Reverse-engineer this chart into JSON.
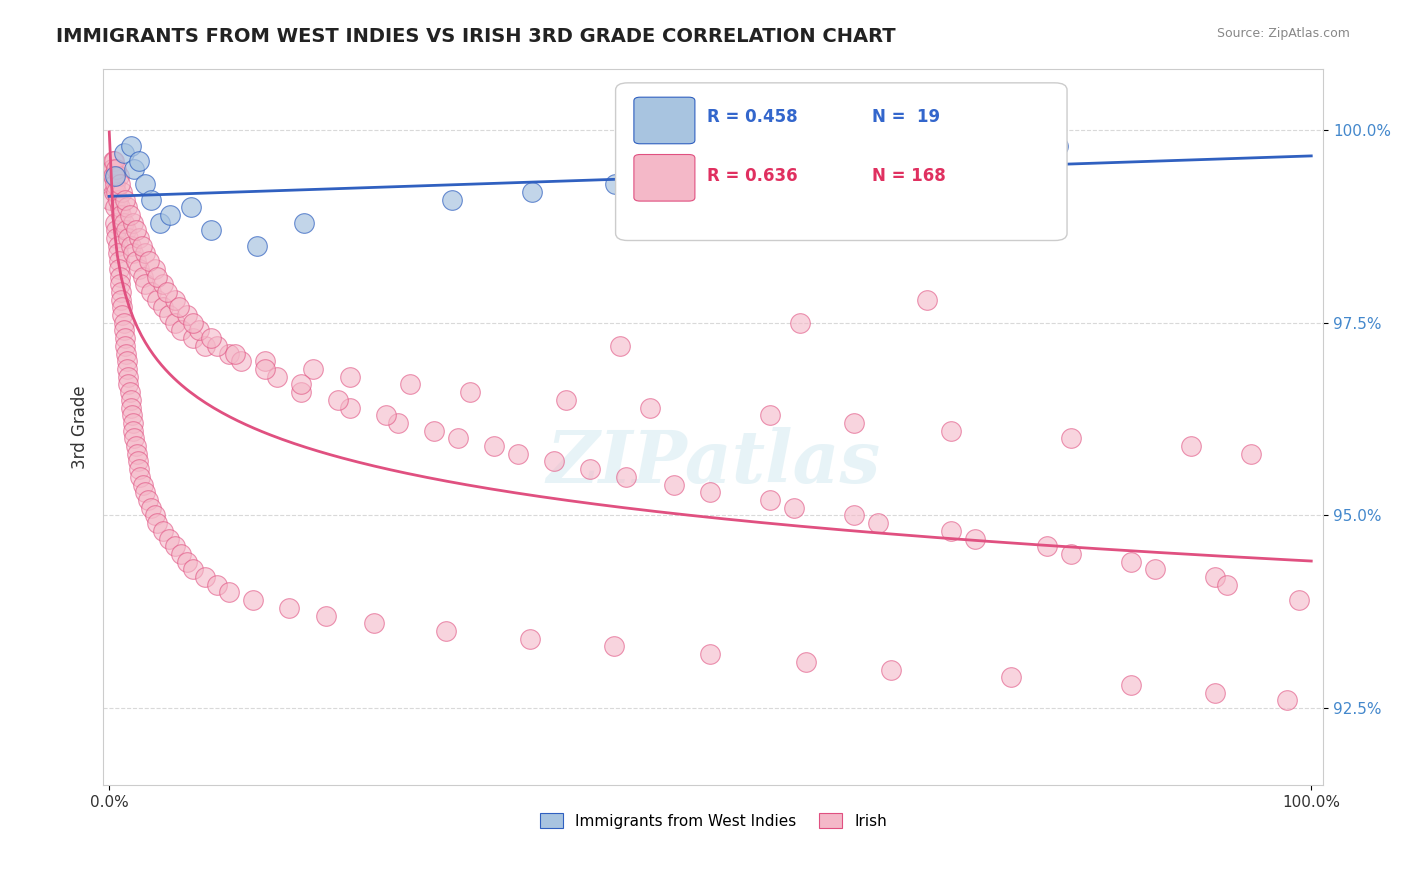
{
  "title": "IMMIGRANTS FROM WEST INDIES VS IRISH 3RD GRADE CORRELATION CHART",
  "source_text": "Source: ZipAtlas.com",
  "xlabel": "",
  "ylabel": "3rd Grade",
  "xticklabels": [
    "0.0%",
    "100.0%"
  ],
  "yticklabels": [
    "92.5%",
    "95.0%",
    "97.5%",
    "100.0%"
  ],
  "ylim": [
    91.5,
    100.8
  ],
  "xlim": [
    -0.5,
    101
  ],
  "legend_r_blue": "R = 0.458",
  "legend_n_blue": "N =  19",
  "legend_r_pink": "R = 0.636",
  "legend_n_pink": "N = 168",
  "legend_label_blue": "Immigrants from West Indies",
  "legend_label_pink": "Irish",
  "blue_color": "#a8c4e0",
  "pink_color": "#f4b8c8",
  "blue_line_color": "#3060c0",
  "pink_line_color": "#e05080",
  "watermark": "ZIPatlas",
  "background_color": "#ffffff",
  "grid_color": "#d0d0d0",
  "blue_scatter_x": [
    0.5,
    1.2,
    1.8,
    2.1,
    2.5,
    3.0,
    3.5,
    4.2,
    5.1,
    6.8,
    8.5,
    12.3,
    16.2,
    28.5,
    35.2,
    42.1,
    52.3,
    60.5,
    78.9
  ],
  "blue_scatter_y": [
    99.4,
    99.7,
    99.8,
    99.5,
    99.6,
    99.3,
    99.1,
    98.8,
    98.9,
    99.0,
    98.7,
    98.5,
    98.8,
    99.1,
    99.2,
    99.3,
    99.5,
    99.6,
    99.8
  ],
  "pink_scatter_x": [
    0.1,
    0.2,
    0.3,
    0.3,
    0.4,
    0.4,
    0.5,
    0.5,
    0.6,
    0.6,
    0.7,
    0.7,
    0.8,
    0.8,
    0.9,
    0.9,
    1.0,
    1.0,
    1.1,
    1.1,
    1.2,
    1.2,
    1.3,
    1.3,
    1.4,
    1.5,
    1.5,
    1.6,
    1.6,
    1.7,
    1.8,
    1.8,
    1.9,
    2.0,
    2.0,
    2.1,
    2.2,
    2.3,
    2.4,
    2.5,
    2.6,
    2.8,
    3.0,
    3.2,
    3.5,
    3.8,
    4.0,
    4.5,
    5.0,
    5.5,
    6.0,
    6.5,
    7.0,
    8.0,
    9.0,
    10.0,
    12.0,
    15.0,
    18.0,
    22.0,
    28.0,
    35.0,
    42.0,
    50.0,
    58.0,
    65.0,
    75.0,
    85.0,
    92.0,
    98.0,
    0.2,
    0.3,
    0.5,
    0.6,
    0.7,
    0.9,
    1.0,
    1.2,
    1.4,
    1.6,
    1.8,
    2.0,
    2.2,
    2.5,
    2.8,
    3.0,
    3.5,
    4.0,
    4.5,
    5.0,
    5.5,
    6.0,
    7.0,
    8.0,
    10.0,
    13.0,
    17.0,
    20.0,
    25.0,
    30.0,
    38.0,
    45.0,
    55.0,
    62.0,
    70.0,
    80.0,
    90.0,
    95.0,
    0.4,
    0.8,
    1.1,
    1.5,
    2.0,
    2.5,
    3.0,
    3.8,
    4.5,
    5.5,
    6.5,
    7.5,
    9.0,
    11.0,
    14.0,
    16.0,
    20.0,
    24.0,
    29.0,
    34.0,
    40.0,
    47.0,
    55.0,
    62.0,
    70.0,
    78.0,
    85.0,
    92.0,
    0.6,
    0.9,
    1.3,
    1.7,
    2.2,
    2.7,
    3.3,
    4.0,
    4.8,
    5.8,
    7.0,
    8.5,
    10.5,
    13.0,
    16.0,
    19.0,
    23.0,
    27.0,
    32.0,
    37.0,
    43.0,
    50.0,
    57.0,
    64.0,
    72.0,
    80.0,
    87.0,
    93.0,
    99.0,
    42.5,
    57.5,
    68.0
  ],
  "pink_scatter_y": [
    99.1,
    99.3,
    99.5,
    99.6,
    99.4,
    99.2,
    99.0,
    98.8,
    98.7,
    98.6,
    98.5,
    98.4,
    98.3,
    98.2,
    98.1,
    98.0,
    97.9,
    97.8,
    97.7,
    97.6,
    97.5,
    97.4,
    97.3,
    97.2,
    97.1,
    97.0,
    96.9,
    96.8,
    96.7,
    96.6,
    96.5,
    96.4,
    96.3,
    96.2,
    96.1,
    96.0,
    95.9,
    95.8,
    95.7,
    95.6,
    95.5,
    95.4,
    95.3,
    95.2,
    95.1,
    95.0,
    94.9,
    94.8,
    94.7,
    94.6,
    94.5,
    94.4,
    94.3,
    94.2,
    94.1,
    94.0,
    93.9,
    93.8,
    93.7,
    93.6,
    93.5,
    93.4,
    93.3,
    93.2,
    93.1,
    93.0,
    92.9,
    92.8,
    92.7,
    92.6,
    99.5,
    99.4,
    99.3,
    99.2,
    99.1,
    99.0,
    98.9,
    98.8,
    98.7,
    98.6,
    98.5,
    98.4,
    98.3,
    98.2,
    98.1,
    98.0,
    97.9,
    97.8,
    97.7,
    97.6,
    97.5,
    97.4,
    97.3,
    97.2,
    97.1,
    97.0,
    96.9,
    96.8,
    96.7,
    96.6,
    96.5,
    96.4,
    96.3,
    96.2,
    96.1,
    96.0,
    95.9,
    95.8,
    99.6,
    99.4,
    99.2,
    99.0,
    98.8,
    98.6,
    98.4,
    98.2,
    98.0,
    97.8,
    97.6,
    97.4,
    97.2,
    97.0,
    96.8,
    96.6,
    96.4,
    96.2,
    96.0,
    95.8,
    95.6,
    95.4,
    95.2,
    95.0,
    94.8,
    94.6,
    94.4,
    94.2,
    99.5,
    99.3,
    99.1,
    98.9,
    98.7,
    98.5,
    98.3,
    98.1,
    97.9,
    97.7,
    97.5,
    97.3,
    97.1,
    96.9,
    96.7,
    96.5,
    96.3,
    96.1,
    95.9,
    95.7,
    95.5,
    95.3,
    95.1,
    94.9,
    94.7,
    94.5,
    94.3,
    94.1,
    93.9,
    97.2,
    97.5,
    97.8
  ]
}
